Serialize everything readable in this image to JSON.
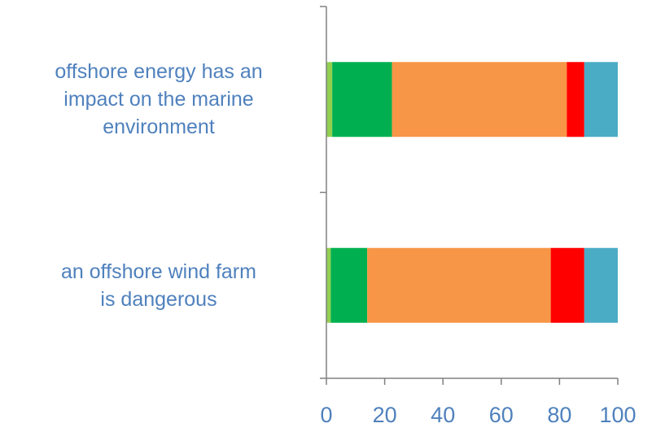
{
  "chart_data": {
    "type": "bar",
    "orientation": "horizontal",
    "stacked": true,
    "categories": [
      "offshore energy has an\nimpact on the marine\nenvironment",
      "an offshore wind farm\nis dangerous"
    ],
    "series": [
      {
        "color": "#92d050",
        "values": [
          2,
          1.5
        ]
      },
      {
        "color": "#00b050",
        "values": [
          20.5,
          12.5
        ]
      },
      {
        "color": "#f79646",
        "values": [
          60,
          63
        ]
      },
      {
        "color": "#ff0000",
        "values": [
          6,
          11.5
        ]
      },
      {
        "color": "#4bacc6",
        "values": [
          11.5,
          11.5
        ]
      }
    ],
    "xlim": [
      0,
      100
    ],
    "xticks": [
      "0",
      "20",
      "40",
      "60",
      "80",
      "100"
    ],
    "grid": false,
    "legend": "none",
    "title": "",
    "xlabel": "",
    "ylabel": ""
  },
  "colors": {
    "label_text": "#4f81bd",
    "axis": "#808080"
  }
}
